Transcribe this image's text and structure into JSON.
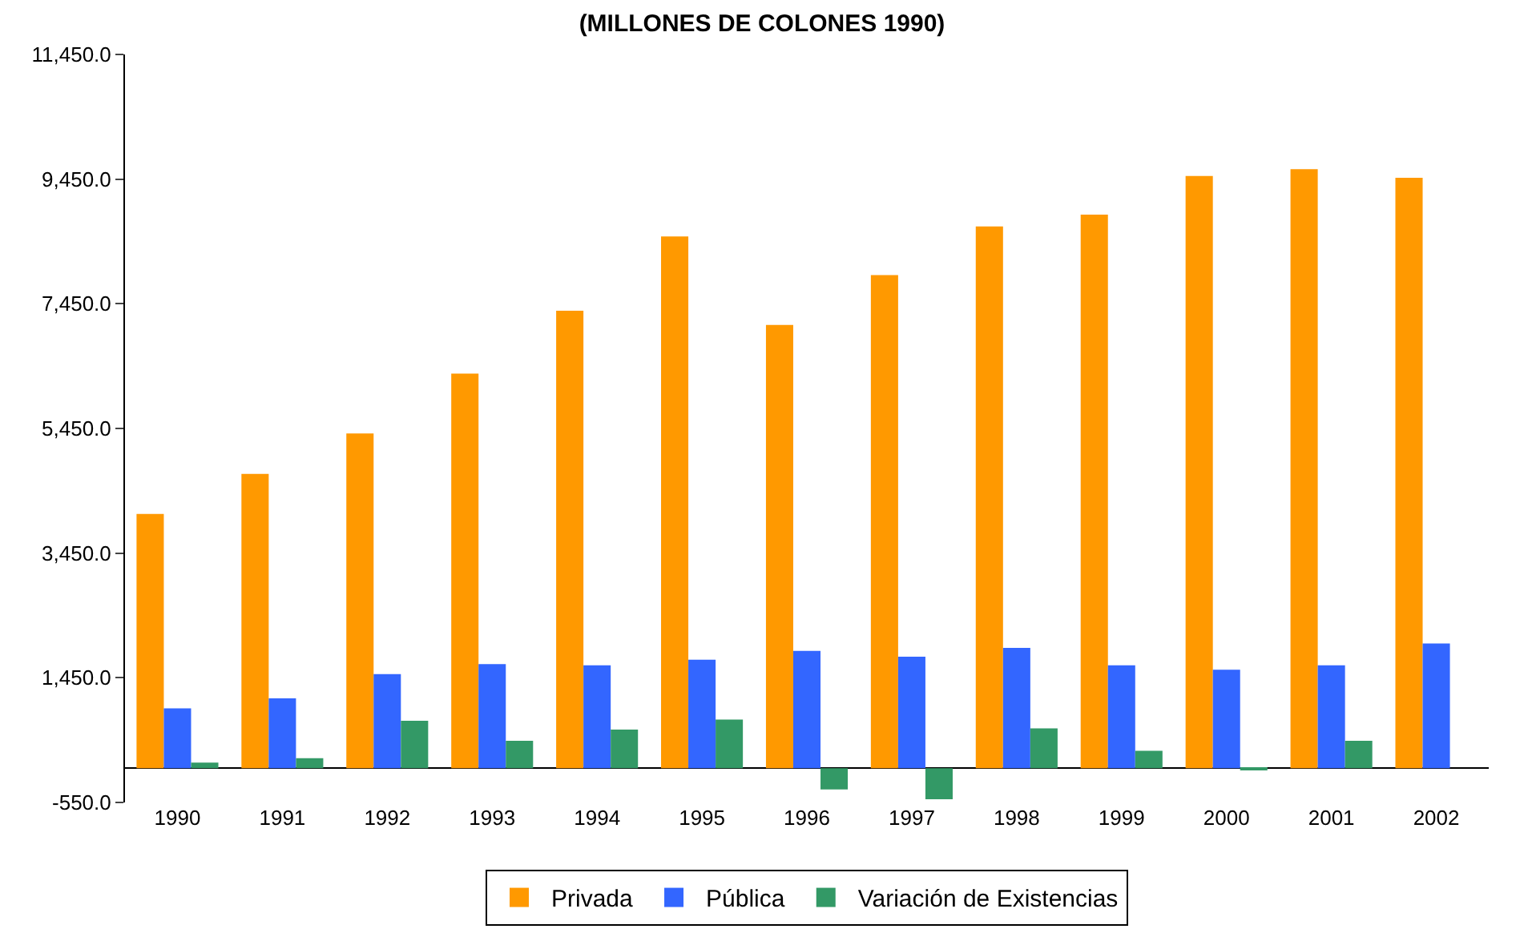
{
  "chart_data": {
    "type": "bar",
    "title": "(MILLONES DE COLONES 1990)",
    "categories": [
      "1990",
      "1991",
      "1992",
      "1993",
      "1994",
      "1995",
      "1996",
      "1997",
      "1998",
      "1999",
      "2000",
      "2001",
      "2002"
    ],
    "series": [
      {
        "name": "Privada",
        "color": "#ff9900",
        "values": [
          4080,
          4720,
          5370,
          6330,
          7340,
          8530,
          7110,
          7910,
          8690,
          8880,
          9500,
          9610,
          9470
        ]
      },
      {
        "name": "Pública",
        "color": "#3366ff",
        "values": [
          960,
          1120,
          1510,
          1670,
          1650,
          1740,
          1880,
          1790,
          1930,
          1650,
          1580,
          1650,
          2000
        ]
      },
      {
        "name": "Variación de Existencias",
        "color": "#339966",
        "values": [
          90,
          160,
          760,
          440,
          620,
          780,
          -340,
          -500,
          640,
          280,
          -20,
          440,
          0
        ]
      }
    ],
    "ylim": [
      -550,
      11450
    ],
    "yticks": [
      {
        "value": -550,
        "label": "-550.0"
      },
      {
        "value": 1450,
        "label": "1,450.0"
      },
      {
        "value": 3450,
        "label": "3,450.0"
      },
      {
        "value": 5450,
        "label": "5,450.0"
      },
      {
        "value": 7450,
        "label": "7,450.0"
      },
      {
        "value": 9450,
        "label": "9,450.0"
      },
      {
        "value": 11450,
        "label": "11,450.0"
      }
    ],
    "legend": "bottom"
  }
}
